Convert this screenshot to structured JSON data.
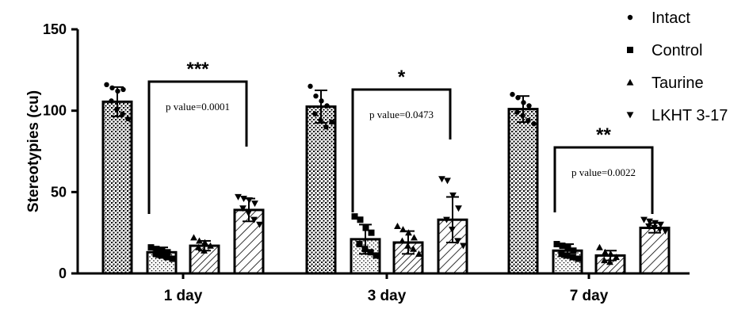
{
  "chart_data": {
    "type": "bar",
    "categories": [
      "1 day",
      "3 day",
      "7 day"
    ],
    "ylabel": "Stereotypies (cu)",
    "xlabel": "",
    "ylim": [
      0,
      150
    ],
    "yticks": [
      0,
      50,
      100,
      150
    ],
    "legend_position": "top-right",
    "series": [
      {
        "name": "Intact",
        "marker": "circle",
        "pattern": "crosshatch",
        "values": [
          105.5,
          102.5,
          101
        ],
        "errors": [
          9,
          10,
          8
        ],
        "points": [
          [
            116,
            114,
            112,
            113,
            106,
            101,
            98,
            95
          ],
          [
            115,
            109,
            106,
            103,
            98,
            94,
            90,
            93
          ],
          [
            110,
            108,
            105,
            103,
            99,
            97,
            94,
            92
          ]
        ]
      },
      {
        "name": "Control",
        "marker": "square",
        "pattern": "dots",
        "values": [
          13,
          21,
          14
        ],
        "errors": [
          3,
          9,
          4
        ],
        "points": [
          [
            16,
            15,
            14,
            13,
            12,
            11,
            10,
            9
          ],
          [
            35,
            33,
            28,
            25,
            18,
            15,
            13,
            11
          ],
          [
            18,
            17,
            16,
            14,
            12,
            11,
            10,
            9
          ]
        ]
      },
      {
        "name": "Taurine",
        "marker": "triangle",
        "pattern": "diagonal",
        "values": [
          17,
          19,
          11
        ],
        "errors": [
          3,
          7,
          3
        ],
        "points": [
          [
            22,
            20,
            19,
            17,
            16,
            14
          ],
          [
            29,
            27,
            25,
            22,
            20,
            17,
            15,
            12
          ],
          [
            16,
            13,
            12,
            10,
            8,
            7
          ]
        ]
      },
      {
        "name": "LKHT 3-17",
        "marker": "triangle-down",
        "pattern": "diagonal-wide",
        "values": [
          39,
          33,
          28
        ],
        "errors": [
          7,
          14,
          3
        ],
        "points": [
          [
            47,
            46,
            45,
            43,
            40,
            37,
            33,
            30
          ],
          [
            58,
            57,
            48,
            40,
            33,
            27,
            20,
            17
          ],
          [
            33,
            32,
            31,
            30,
            29,
            28,
            27,
            26
          ]
        ]
      }
    ],
    "comparisons": [
      {
        "category": "1 day",
        "stars": "***",
        "label": "p value=0.0001"
      },
      {
        "category": "3 day",
        "stars": "*",
        "label": "p value=0.0473"
      },
      {
        "category": "7 day",
        "stars": "**",
        "label": "p value=0.0022"
      }
    ]
  }
}
